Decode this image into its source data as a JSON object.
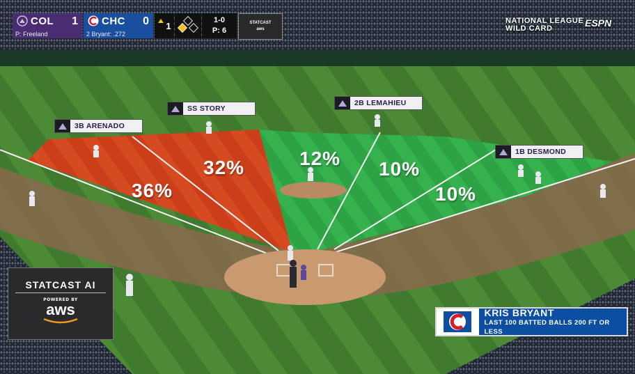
{
  "scorebug": {
    "away": {
      "abbr": "COL",
      "score": "1",
      "sub": "P: Freeland",
      "color": "#4a2d72"
    },
    "home": {
      "abbr": "CHC",
      "score": "0",
      "sub": "2 Bryant: .272",
      "color": "#1a4fa0"
    },
    "inning": "1",
    "count": "1-0",
    "pitches": "P: 6",
    "badge_line1": "STATCAST",
    "badge_line2": "aws"
  },
  "broadcast": {
    "title_line1": "NATIONAL LEAGUE",
    "title_line2": "WILD CARD",
    "network": "ESPN"
  },
  "fielders": [
    {
      "label": "3B ARENADO"
    },
    {
      "label": "SS STORY"
    },
    {
      "label": "2B LEMAHIEU"
    },
    {
      "label": "1B DESMOND"
    }
  ],
  "zones": [
    {
      "pct": "36%",
      "color": "#d9421c"
    },
    {
      "pct": "32%",
      "color": "#d9421c"
    },
    {
      "pct": "12%",
      "color": "#2fb04a"
    },
    {
      "pct": "10%",
      "color": "#2fb04a"
    },
    {
      "pct": "10%",
      "color": "#2fb04a"
    }
  ],
  "statcast": {
    "title": "STATCAST AI",
    "powered": "POWERED BY",
    "aws": "aws"
  },
  "lower_third": {
    "name": "KRIS BRYANT",
    "subtitle": "LAST 100 BATTED BALLS 200 FT OR LESS"
  }
}
